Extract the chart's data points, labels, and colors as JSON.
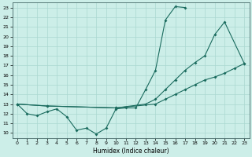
{
  "xlabel": "Humidex (Indice chaleur)",
  "bg_color": "#cceee8",
  "line_color": "#1a6b5e",
  "grid_color": "#aad8d0",
  "xlim": [
    -0.5,
    23.5
  ],
  "ylim": [
    9.5,
    23.5
  ],
  "yticks": [
    10,
    11,
    12,
    13,
    14,
    15,
    16,
    17,
    18,
    19,
    20,
    21,
    22,
    23
  ],
  "xticks": [
    0,
    1,
    2,
    3,
    4,
    5,
    6,
    7,
    8,
    9,
    10,
    11,
    12,
    13,
    14,
    15,
    16,
    17,
    18,
    19,
    20,
    21,
    22,
    23
  ],
  "line1_x": [
    0,
    1,
    2,
    3,
    4,
    5,
    6,
    7,
    8,
    9,
    10,
    11,
    12,
    13,
    14,
    15,
    16,
    17
  ],
  "line1_y": [
    13,
    12,
    11.8,
    12.2,
    12.5,
    11.7,
    10.3,
    10.5,
    9.9,
    10.5,
    12.5,
    12.6,
    12.6,
    14.5,
    16.5,
    21.7,
    23.1,
    23.0
  ],
  "line2_x": [
    0,
    3,
    10,
    13,
    14,
    15,
    16,
    17,
    18,
    19,
    20,
    21,
    23
  ],
  "line2_y": [
    13,
    12.8,
    12.6,
    13.0,
    13.5,
    14.5,
    15.5,
    16.5,
    17.3,
    18.0,
    20.2,
    21.5,
    17.2
  ],
  "line3_x": [
    0,
    3,
    10,
    14,
    15,
    16,
    17,
    18,
    19,
    20,
    21,
    22,
    23
  ],
  "line3_y": [
    13,
    12.8,
    12.6,
    13.0,
    13.5,
    14.0,
    14.5,
    15.0,
    15.5,
    15.8,
    16.2,
    16.7,
    17.2
  ]
}
